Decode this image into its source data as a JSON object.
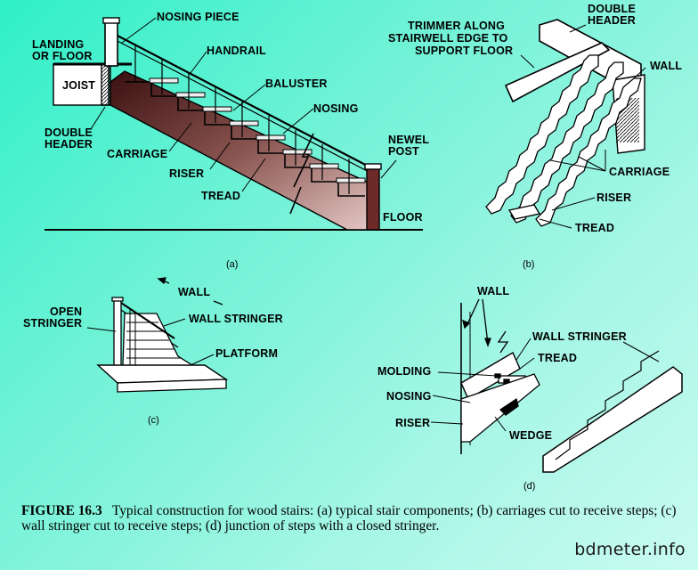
{
  "panels": {
    "a": {
      "sublabel": "(a)",
      "labels": {
        "nosing_piece": "NOSING PIECE",
        "landing": "LANDING",
        "or_floor": "OR FLOOR",
        "handrail": "HANDRAIL",
        "joist": "JOIST",
        "baluster": "BALUSTER",
        "nosing": "NOSING",
        "double": "DOUBLE",
        "header": "HEADER",
        "carriage": "CARRIAGE",
        "newel": "NEWEL",
        "post": "POST",
        "riser": "RISER",
        "tread": "TREAD",
        "floor": "FLOOR"
      }
    },
    "b": {
      "sublabel": "(b)",
      "labels": {
        "double": "DOUBLE",
        "header": "HEADER",
        "trimmer1": "TRIMMER ALONG",
        "trimmer2": "STAIRWELL EDGE TO",
        "trimmer3": "SUPPORT FLOOR",
        "wall": "WALL",
        "carriage": "CARRIAGE",
        "riser": "RISER",
        "tread": "TREAD"
      }
    },
    "c": {
      "sublabel": "(c)",
      "labels": {
        "wall": "WALL",
        "open": "OPEN",
        "stringer": "STRINGER",
        "wall_stringer": "WALL STRINGER",
        "platform": "PLATFORM"
      }
    },
    "d": {
      "sublabel": "(d)",
      "labels": {
        "wall": "WALL",
        "wall_stringer": "WALL STRINGER",
        "molding": "MOLDING",
        "tread": "TREAD",
        "nosing": "NOSING",
        "riser": "RISER",
        "wedge": "WEDGE"
      }
    }
  },
  "caption": {
    "figure": "FIGURE 16.3",
    "text": "Typical construction for wood stairs: (a) typical stair components; (b) carriages cut to receive steps; (c) wall stringer cut to receive steps; (d) junction of steps with a closed stringer."
  },
  "watermark": "bdmeter.info"
}
